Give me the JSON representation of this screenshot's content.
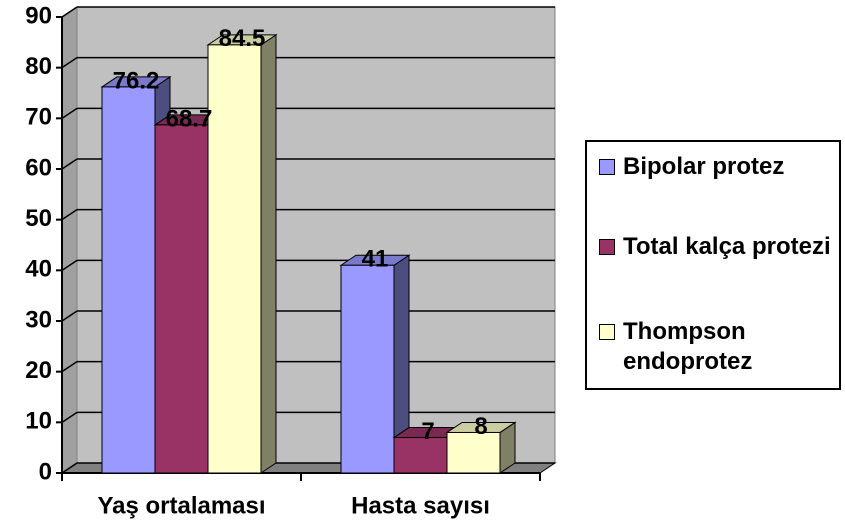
{
  "chart_data": {
    "type": "bar3d",
    "categories": [
      "Yaş ortalaması",
      "Hasta sayısı"
    ],
    "series": [
      {
        "name": "Bipolar protez",
        "color": "#9999ff",
        "values": [
          76.2,
          41
        ]
      },
      {
        "name": "Total kalça protezi",
        "color": "#993366",
        "values": [
          68.7,
          7
        ]
      },
      {
        "name": "Thompson endoprotez",
        "color": "#ffffcc",
        "values": [
          84.5,
          8
        ]
      }
    ],
    "ylim": [
      0,
      90
    ],
    "yticks": [
      0,
      10,
      20,
      30,
      40,
      50,
      60,
      70,
      80,
      90
    ],
    "grid": true,
    "legend": "right"
  }
}
